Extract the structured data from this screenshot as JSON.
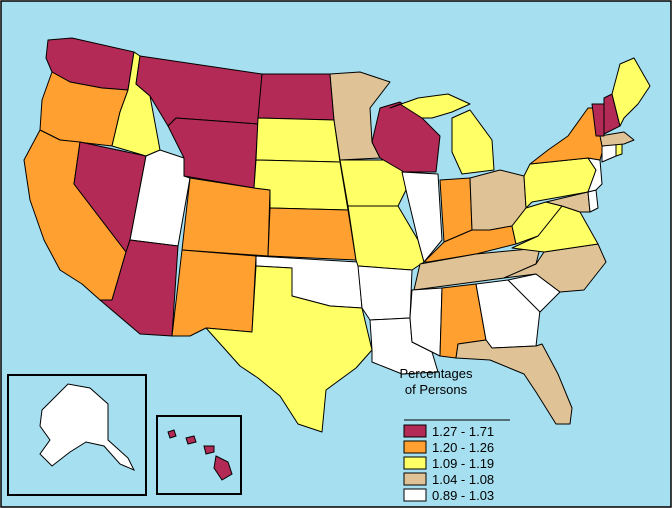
{
  "colors": {
    "ocean": "#a6dff0",
    "border": "#000000",
    "class_1": "#b22a55",
    "class_2": "#ffa030",
    "class_3": "#ffff66",
    "class_4": "#dfc396",
    "class_5": "#ffffff"
  },
  "legend": {
    "title_line1": "Percentages",
    "title_line2": "of Persons",
    "items": [
      {
        "label": "1.27 - 1.71",
        "color": "#b22a55"
      },
      {
        "label": "1.20 - 1.26",
        "color": "#ffa030"
      },
      {
        "label": "1.09 - 1.19",
        "color": "#ffff66"
      },
      {
        "label": "1.04 - 1.08",
        "color": "#dfc396"
      },
      {
        "label": "0.89 - 1.03",
        "color": "#ffffff"
      }
    ]
  },
  "states": {
    "washington": "class_1",
    "oregon": "class_2",
    "california": "class_2",
    "idaho": "class_3",
    "nevada": "class_1",
    "utah": "class_5",
    "arizona": "class_1",
    "montana": "class_1",
    "wyoming": "class_1",
    "colorado": "class_2",
    "new-mexico": "class_2",
    "north-dakota": "class_1",
    "south-dakota": "class_3",
    "nebraska": "class_3",
    "kansas": "class_2",
    "oklahoma": "class_5",
    "texas": "class_3",
    "minnesota": "class_4",
    "iowa": "class_3",
    "missouri": "class_3",
    "arkansas": "class_5",
    "louisiana": "class_5",
    "wisconsin": "class_1",
    "illinois": "class_5",
    "michigan": "class_3",
    "indiana": "class_2",
    "ohio": "class_4",
    "kentucky": "class_2",
    "tennessee": "class_4",
    "mississippi": "class_5",
    "alabama": "class_2",
    "georgia": "class_5",
    "florida": "class_4",
    "south-carolina": "class_5",
    "north-carolina": "class_4",
    "virginia": "class_3",
    "west-virginia": "class_3",
    "pennsylvania": "class_3",
    "new-york": "class_2",
    "vermont": "class_1",
    "new-hampshire": "class_1",
    "maine": "class_3",
    "massachusetts": "class_4",
    "connecticut": "class_5",
    "rhode-island": "class_3",
    "new-jersey": "class_5",
    "delaware": "class_5",
    "maryland": "class_4",
    "alaska": "class_5",
    "hawaii": "class_1"
  }
}
